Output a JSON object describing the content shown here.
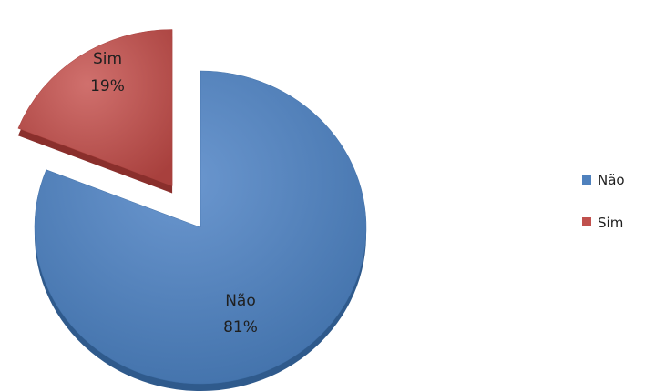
{
  "chart_data": {
    "type": "pie",
    "title": "",
    "categories": [
      "Não",
      "Sim"
    ],
    "values": [
      81,
      19
    ],
    "data_labels": [
      "81%",
      "19%"
    ],
    "colors": [
      "#4f81bd",
      "#c0504d"
    ],
    "legend": {
      "position": "right",
      "entries": [
        "Não",
        "Sim"
      ]
    },
    "style": "3d-exploded"
  }
}
